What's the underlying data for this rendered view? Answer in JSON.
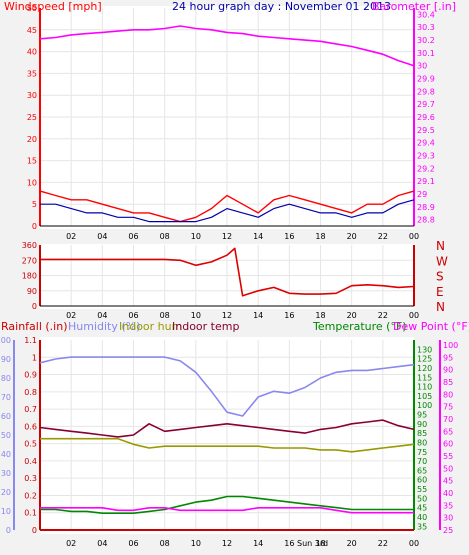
{
  "chart_data": [
    {
      "type": "line",
      "title": "24 hour graph day : November 01 2013",
      "left_axis": {
        "label": "Windspeed [mph]",
        "color": "#ff0000",
        "ticks": [
          "0",
          "5",
          "10",
          "15",
          "20",
          "25",
          "30",
          "35",
          "40",
          "45",
          "50"
        ],
        "ylim": [
          0,
          50
        ]
      },
      "right_axis": {
        "label": "Barometer [.in]",
        "color": "#ff00ff",
        "ticks": [
          "28.8",
          "28.9",
          "29",
          "29.1",
          "29.2",
          "29.3",
          "29.4",
          "29.5",
          "29.6",
          "29.7",
          "29.8",
          "29.9",
          "30",
          "30.1",
          "30.2",
          "30.3",
          "30.4"
        ],
        "ylim": [
          28.75,
          30.45
        ]
      },
      "x_ticks": [
        "02",
        "04",
        "06",
        "08",
        "10",
        "12",
        "14",
        "16",
        "18",
        "20",
        "22",
        "00"
      ],
      "x": [
        0,
        1,
        2,
        3,
        4,
        5,
        6,
        7,
        8,
        9,
        10,
        11,
        12,
        13,
        14,
        15,
        16,
        17,
        18,
        19,
        20,
        21,
        22,
        23,
        24
      ],
      "series": [
        {
          "values": [
            30.21,
            30.22,
            30.24,
            30.25,
            30.26,
            30.27,
            30.28,
            30.28,
            30.29,
            30.31,
            30.29,
            30.28,
            30.26,
            30.25,
            30.23,
            30.22,
            30.21,
            30.2,
            30.19,
            30.17,
            30.15,
            30.12,
            30.09,
            30.04,
            30.0
          ],
          "color": "#ff00ff",
          "axis": "right"
        },
        {
          "values": [
            8,
            7,
            6,
            6,
            5,
            4,
            3,
            3,
            2,
            1,
            2,
            4,
            7,
            5,
            3,
            6,
            7,
            6,
            5,
            4,
            3,
            5,
            5,
            7,
            8
          ],
          "color": "#ff0000",
          "axis": "left"
        },
        {
          "values": [
            5,
            5,
            4,
            3,
            3,
            2,
            2,
            1,
            1,
            1,
            1,
            2,
            4,
            3,
            2,
            4,
            5,
            4,
            3,
            3,
            2,
            3,
            3,
            5,
            6
          ],
          "color": "#0000aa",
          "axis": "left"
        }
      ]
    },
    {
      "type": "line",
      "right_axis": {
        "labels": [
          "N",
          "W",
          "S",
          "E",
          "N"
        ],
        "color": "#ff0000"
      },
      "left_axis": {
        "ticks": [
          "0",
          "90",
          "180",
          "270",
          "360"
        ],
        "ylim": [
          0,
          360
        ]
      },
      "x_ticks": [
        "02",
        "04",
        "06",
        "08",
        "10",
        "12",
        "14",
        "16",
        "18",
        "20",
        "22",
        "00"
      ],
      "x": [
        0,
        2,
        4,
        6,
        8,
        9,
        10,
        11,
        12,
        12.5,
        13,
        13.5,
        14,
        15,
        16,
        17,
        18,
        19,
        20,
        21,
        22,
        23,
        24
      ],
      "series": [
        {
          "values": [
            275,
            275,
            275,
            275,
            275,
            270,
            240,
            260,
            300,
            340,
            60,
            75,
            90,
            110,
            75,
            70,
            70,
            75,
            120,
            125,
            120,
            110,
            115
          ],
          "color": "#dd0000"
        }
      ]
    },
    {
      "type": "line",
      "labels": [
        "Rainfall (.in)",
        "Humidity (%)",
        "Indoor hum",
        "Indoor temp",
        "Temperature (°F)",
        "Dew Point (°F)"
      ],
      "label_colors": [
        "#cc0000",
        "#8888ee",
        "#999900",
        "#880033",
        "#008800",
        "#ff00ff"
      ],
      "axes": {
        "rainfall": {
          "ticks": [
            "0",
            "0.1",
            "0.2",
            "0.3",
            "0.4",
            "0.5",
            "0.6",
            "0.7",
            "0.8",
            "0.9",
            "1",
            "1.1"
          ],
          "ylim": [
            0,
            1.1
          ],
          "color": "#cc0000"
        },
        "humidity": {
          "ticks": [
            "0",
            "10",
            "20",
            "30",
            "40",
            "50",
            "60",
            "70",
            "80",
            "90",
            "100"
          ],
          "ylim": [
            0,
            100
          ],
          "color": "#8888ee"
        },
        "temperature": {
          "ticks": [
            "35",
            "40",
            "45",
            "50",
            "55",
            "60",
            "65",
            "70",
            "75",
            "80",
            "85",
            "90",
            "95",
            "100",
            "105",
            "110",
            "115",
            "120",
            "125",
            "130"
          ],
          "ylim": [
            33,
            135
          ],
          "color": "#008800"
        },
        "dew_point": {
          "ticks": [
            "25",
            "30",
            "35",
            "40",
            "45",
            "50",
            "55",
            "60",
            "65",
            "70",
            "75",
            "80",
            "85",
            "90",
            "95",
            "100"
          ],
          "ylim": [
            25,
            102
          ],
          "color": "#ff00ff"
        }
      },
      "x_ticks": [
        "02",
        "04",
        "06",
        "08",
        "10",
        "12",
        "14",
        "16",
        "18",
        "20",
        "22",
        "00"
      ],
      "x_annotation": "Sun 3rd",
      "x": [
        0,
        1,
        2,
        3,
        4,
        5,
        6,
        7,
        8,
        9,
        10,
        11,
        12,
        13,
        14,
        15,
        16,
        17,
        18,
        19,
        20,
        21,
        22,
        23,
        24
      ],
      "series": [
        {
          "values": [
            88,
            90,
            91,
            91,
            91,
            91,
            91,
            91,
            91,
            89,
            83,
            73,
            62,
            60,
            70,
            73,
            72,
            75,
            80,
            83,
            84,
            84,
            85,
            86,
            87
          ],
          "color": "#8888ee",
          "axis": "humidity"
        },
        {
          "values": [
            88,
            87,
            86,
            85,
            84,
            83,
            84,
            90,
            86,
            87,
            88,
            89,
            90,
            89,
            88,
            87,
            86,
            85,
            87,
            88,
            90,
            91,
            92,
            89,
            87
          ],
          "color": "#880033",
          "axis": "temperature"
        },
        {
          "values": [
            82,
            82,
            82,
            82,
            82,
            82,
            79,
            77,
            78,
            78,
            78,
            78,
            78,
            78,
            78,
            77,
            77,
            77,
            76,
            76,
            75,
            76,
            77,
            78,
            79
          ],
          "color": "#999900",
          "axis": "temperature"
        },
        {
          "values": [
            44,
            44,
            43,
            43,
            42,
            42,
            42,
            43,
            44,
            46,
            48,
            49,
            51,
            51,
            50,
            49,
            48,
            47,
            46,
            45,
            44,
            44,
            44,
            44,
            44
          ],
          "color": "#008800",
          "axis": "temperature"
        },
        {
          "values": [
            34,
            34,
            34,
            34,
            34,
            33,
            33,
            34,
            34,
            33,
            33,
            33,
            33,
            33,
            34,
            34,
            34,
            34,
            34,
            33,
            32,
            32,
            32,
            32,
            32
          ],
          "color": "#ff00ff",
          "axis": "dew_point"
        },
        {
          "values": [
            0,
            0,
            0,
            0,
            0,
            0,
            0,
            0,
            0,
            0,
            0,
            0,
            0,
            0,
            0,
            0,
            0,
            0,
            0,
            0,
            0,
            0,
            0,
            0,
            0
          ],
          "color": "#cc0000",
          "axis": "rainfall"
        }
      ]
    }
  ]
}
